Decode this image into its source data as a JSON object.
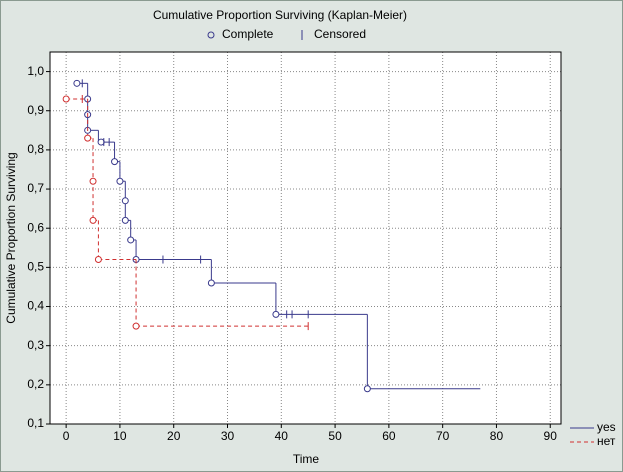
{
  "chart_data": {
    "type": "step",
    "title": "Cumulative Proportion Surviving (Kaplan-Meier)",
    "marker_legend": {
      "complete": "Complete",
      "censored": "Censored"
    },
    "xlabel": "Time",
    "ylabel": "Cumulative Proportion Surviving",
    "xlim": [
      -3,
      92
    ],
    "ylim": [
      0.1,
      1.05
    ],
    "xticks": [
      0,
      10,
      20,
      30,
      40,
      50,
      60,
      70,
      80,
      90
    ],
    "yticks": [
      {
        "value": 0.1,
        "label": "0,1"
      },
      {
        "value": 0.2,
        "label": "0,2"
      },
      {
        "value": 0.3,
        "label": "0,3"
      },
      {
        "value": 0.4,
        "label": "0,4"
      },
      {
        "value": 0.5,
        "label": "0,5"
      },
      {
        "value": 0.6,
        "label": "0,6"
      },
      {
        "value": 0.7,
        "label": "0,7"
      },
      {
        "value": 0.8,
        "label": "0,8"
      },
      {
        "value": 0.9,
        "label": "0,9"
      },
      {
        "value": 1.0,
        "label": "1,0"
      }
    ],
    "grid": true,
    "legend": "bottom-right",
    "series": [
      {
        "name": "yes",
        "color": "#3a3a8c",
        "dash": false,
        "x": [
          2,
          4,
          6,
          9,
          10,
          11,
          12,
          13,
          27,
          39,
          56,
          77
        ],
        "values": [
          0.97,
          0.85,
          0.82,
          0.77,
          0.72,
          0.62,
          0.57,
          0.52,
          0.46,
          0.38,
          0.19,
          0.19
        ],
        "complete": {
          "x": [
            2,
            4,
            4,
            4,
            6.5,
            9,
            10,
            11,
            11,
            12,
            13,
            27,
            39,
            56
          ],
          "values": [
            0.97,
            0.93,
            0.89,
            0.85,
            0.82,
            0.77,
            0.72,
            0.67,
            0.62,
            0.57,
            0.52,
            0.46,
            0.38,
            0.19
          ]
        },
        "censored": {
          "x": [
            3,
            7,
            8,
            18,
            25,
            41,
            42,
            45
          ],
          "values": [
            0.97,
            0.82,
            0.82,
            0.52,
            0.52,
            0.38,
            0.38,
            0.38
          ]
        }
      },
      {
        "name": "нет",
        "color": "#d03030",
        "dash": true,
        "x": [
          0,
          4,
          5,
          6,
          13,
          45
        ],
        "values": [
          0.93,
          0.83,
          0.62,
          0.52,
          0.35,
          0.35
        ],
        "complete": {
          "x": [
            0,
            4,
            5,
            5,
            6,
            13
          ],
          "values": [
            0.93,
            0.83,
            0.72,
            0.62,
            0.52,
            0.35
          ]
        },
        "censored": {
          "x": [
            3,
            45
          ],
          "values": [
            0.93,
            0.35
          ]
        }
      }
    ]
  }
}
